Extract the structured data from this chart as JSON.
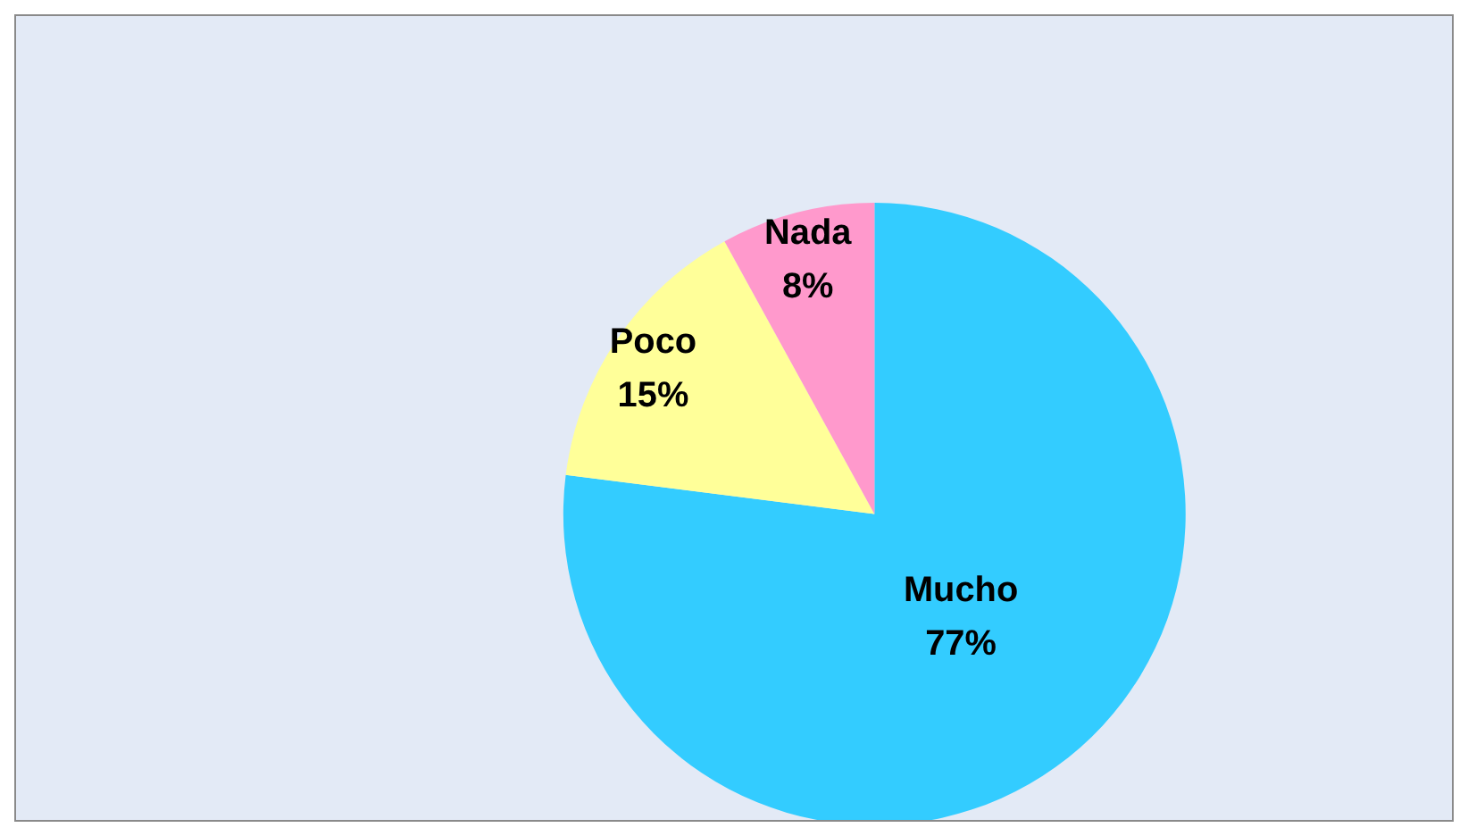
{
  "chart_data": {
    "type": "pie",
    "categories": [
      "Mucho",
      "Poco",
      "Nada"
    ],
    "values": [
      77,
      15,
      8
    ],
    "colors": [
      "#33ccff",
      "#ffff99",
      "#ff99cc"
    ],
    "value_labels": [
      "77%",
      "15%",
      "8%"
    ]
  }
}
